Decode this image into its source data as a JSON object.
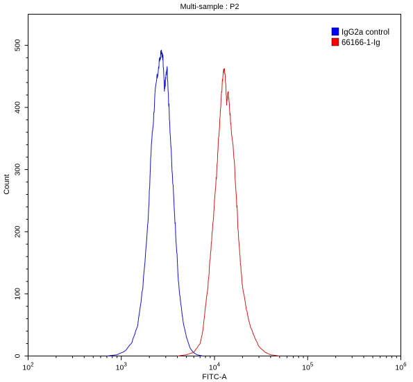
{
  "chart_data": {
    "type": "line",
    "title": "Multi-sample : P2",
    "xlabel": "FITC-A",
    "ylabel": "Count",
    "xscale": "log",
    "xlim": [
      100,
      1000000
    ],
    "ylim": [
      0,
      550
    ],
    "x_ticks": [
      {
        "value": 100,
        "base": "10",
        "exp": "2"
      },
      {
        "value": 1000,
        "base": "10",
        "exp": "3"
      },
      {
        "value": 10000,
        "base": "10",
        "exp": "4"
      },
      {
        "value": 100000,
        "base": "10",
        "exp": "5"
      },
      {
        "value": 1000000,
        "base": "10",
        "exp": "6"
      }
    ],
    "y_ticks": [
      0,
      100,
      200,
      300,
      400,
      500
    ],
    "grid": false,
    "legend_position": "top-right",
    "series": [
      {
        "name": "IgG2a control",
        "color": "#1414c8",
        "legend_color": "#0000ff",
        "x": [
          700,
          900,
          1100,
          1300,
          1500,
          1700,
          1900,
          2000,
          2100,
          2200,
          2300,
          2400,
          2500,
          2600,
          2700,
          2800,
          2900,
          3000,
          3100,
          3200,
          3300,
          3500,
          3700,
          3900,
          4100,
          4300,
          4600,
          5000,
          5500,
          6000,
          6500,
          7500
        ],
        "y": [
          0,
          2,
          8,
          22,
          50,
          110,
          200,
          260,
          340,
          375,
          420,
          445,
          460,
          480,
          490,
          478,
          430,
          445,
          470,
          420,
          380,
          300,
          240,
          180,
          120,
          90,
          55,
          30,
          12,
          5,
          2,
          0
        ]
      },
      {
        "name": "66166-1-Ig",
        "color": "#c81e1e",
        "legend_color": "#ff0000",
        "x": [
          4000,
          5000,
          6000,
          7000,
          7500,
          8000,
          8500,
          9000,
          9500,
          10000,
          10500,
          11000,
          11500,
          12000,
          12500,
          13000,
          13500,
          14000,
          14500,
          15000,
          16000,
          17000,
          18000,
          19000,
          20000,
          22000,
          24000,
          27000,
          30000,
          35000,
          40000,
          50000
        ],
        "y": [
          0,
          2,
          6,
          20,
          40,
          80,
          110,
          160,
          200,
          250,
          290,
          345,
          385,
          430,
          460,
          455,
          410,
          425,
          400,
          370,
          330,
          270,
          200,
          150,
          110,
          75,
          50,
          30,
          15,
          6,
          2,
          0
        ]
      }
    ]
  }
}
